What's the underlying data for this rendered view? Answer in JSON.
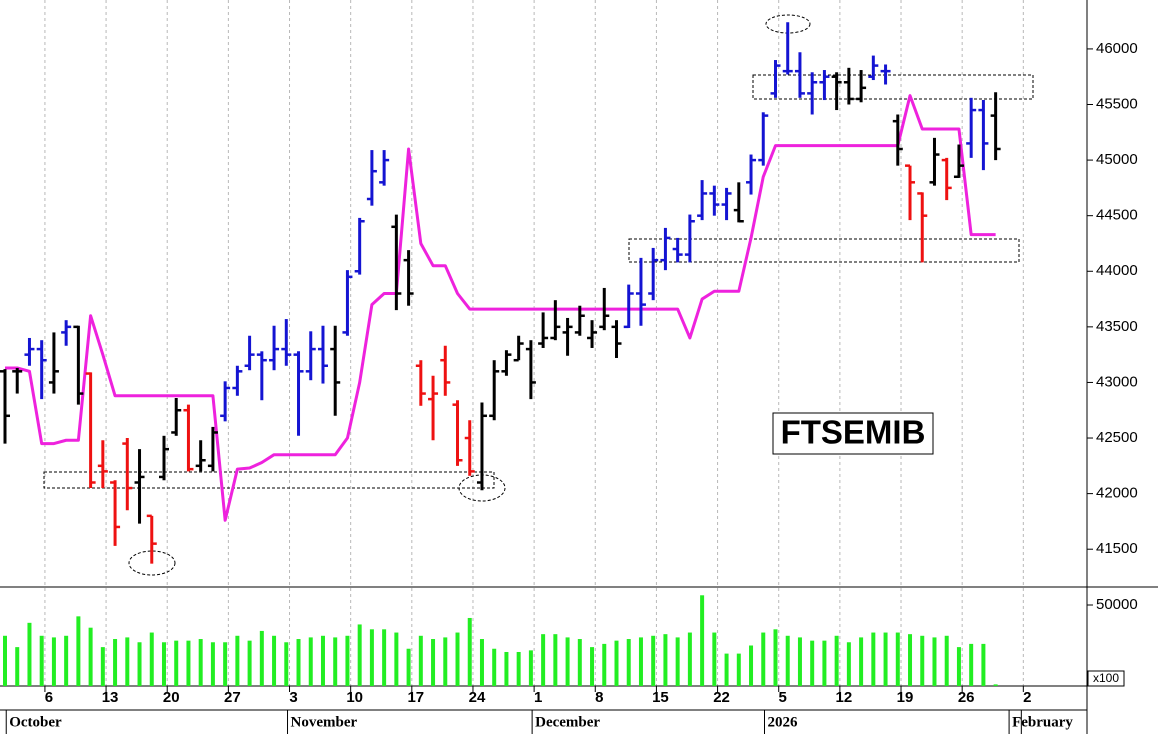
{
  "chart_data": {
    "type": "ohlc",
    "title": "FTSEMIB",
    "categories": [
      null,
      null,
      null,
      null,
      "6",
      null,
      null,
      null,
      null,
      "13",
      null,
      null,
      null,
      null,
      "20",
      null,
      null,
      null,
      null,
      "27",
      null,
      null,
      null,
      null,
      "3",
      null,
      null,
      null,
      null,
      "10",
      null,
      null,
      null,
      null,
      "17",
      null,
      null,
      null,
      null,
      "24",
      null,
      null,
      null,
      null,
      "1",
      null,
      null,
      null,
      null,
      "8",
      null,
      null,
      null,
      null,
      "15",
      null,
      null,
      null,
      null,
      "22",
      null,
      null,
      null,
      null,
      "5",
      null,
      null,
      null,
      null,
      "12",
      null,
      null,
      null,
      null,
      "19",
      null,
      null,
      null,
      null,
      "26",
      null,
      null,
      null,
      null,
      "2"
    ],
    "months": [
      null,
      "October",
      null,
      null,
      null,
      null,
      null,
      null,
      null,
      null,
      null,
      null,
      null,
      null,
      null,
      null,
      null,
      null,
      null,
      null,
      null,
      null,
      null,
      null,
      "November",
      null,
      null,
      null,
      null,
      null,
      null,
      null,
      null,
      null,
      null,
      null,
      null,
      null,
      null,
      null,
      null,
      null,
      null,
      null,
      "December",
      null,
      null,
      null,
      null,
      null,
      null,
      null,
      null,
      null,
      null,
      null,
      null,
      null,
      null,
      null,
      null,
      null,
      null,
      "2026",
      null,
      null,
      null,
      null,
      null,
      null,
      null,
      null,
      null,
      null,
      null,
      null,
      null,
      null,
      null,
      null,
      null,
      null,
      null,
      "February"
    ],
    "ohlc": [
      [
        43100,
        43120,
        42450,
        42700
      ],
      [
        43100,
        43130,
        42900,
        43100
      ],
      [
        43250,
        43400,
        43150,
        43300
      ],
      [
        43300,
        43380,
        42850,
        43200
      ],
      [
        43000,
        43450,
        42900,
        43100
      ],
      [
        43450,
        43560,
        43330,
        43500
      ],
      [
        43500,
        43510,
        42800,
        42900
      ],
      [
        43080,
        43090,
        42050,
        42100
      ],
      [
        42250,
        42480,
        42050,
        42200
      ],
      [
        42100,
        42120,
        41530,
        41700
      ],
      [
        42450,
        42500,
        41850,
        42050
      ],
      [
        42100,
        42400,
        41730,
        42150
      ],
      [
        41800,
        41800,
        41370,
        41550
      ],
      [
        42150,
        42520,
        42120,
        42400
      ],
      [
        42550,
        42860,
        42520,
        42750
      ],
      [
        42750,
        42800,
        42200,
        42220
      ],
      [
        42250,
        42480,
        42200,
        42300
      ],
      [
        42250,
        42600,
        42200,
        42550
      ],
      [
        42700,
        43010,
        42650,
        42950
      ],
      [
        42950,
        43150,
        42880,
        43100
      ],
      [
        43150,
        43420,
        43110,
        43250
      ],
      [
        43250,
        43280,
        42840,
        43200
      ],
      [
        43200,
        43510,
        43110,
        43300
      ],
      [
        43300,
        43570,
        43150,
        43250
      ],
      [
        43250,
        43280,
        42520,
        43100
      ],
      [
        43100,
        43460,
        43020,
        43300
      ],
      [
        43300,
        43510,
        42990,
        43150
      ],
      [
        43300,
        43510,
        42700,
        43000
      ],
      [
        43450,
        44010,
        43420,
        43950
      ],
      [
        44000,
        44480,
        43970,
        44450
      ],
      [
        44650,
        45090,
        44590,
        44900
      ],
      [
        44800,
        45090,
        44770,
        45000
      ],
      [
        44400,
        44510,
        43650,
        43800
      ],
      [
        44100,
        44190,
        43690,
        43800
      ],
      [
        43150,
        43200,
        42790,
        42900
      ],
      [
        42850,
        43060,
        42480,
        42900
      ],
      [
        43200,
        43330,
        42880,
        43000
      ],
      [
        42800,
        42840,
        42250,
        42300
      ],
      [
        42500,
        42660,
        42160,
        42200
      ],
      [
        42100,
        42820,
        42030,
        42700
      ],
      [
        42700,
        43200,
        42660,
        43100
      ],
      [
        43100,
        43290,
        43060,
        43250
      ],
      [
        43200,
        43420,
        43200,
        43350
      ],
      [
        43300,
        43380,
        42850,
        43000
      ],
      [
        43350,
        43630,
        43310,
        43400
      ],
      [
        43400,
        43740,
        43380,
        43500
      ],
      [
        43450,
        43580,
        43240,
        43500
      ],
      [
        43450,
        43690,
        43420,
        43600
      ],
      [
        43400,
        43560,
        43310,
        43450
      ],
      [
        43500,
        43850,
        43470,
        43600
      ],
      [
        43500,
        43560,
        43220,
        43350
      ],
      [
        43500,
        43880,
        43490,
        43800
      ],
      [
        43800,
        44120,
        43510,
        43700
      ],
      [
        43800,
        44210,
        43740,
        44100
      ],
      [
        44100,
        44390,
        44010,
        44300
      ],
      [
        44200,
        44300,
        44080,
        44150
      ],
      [
        44150,
        44510,
        44080,
        44450
      ],
      [
        44500,
        44820,
        44460,
        44700
      ],
      [
        44700,
        44770,
        44500,
        44600
      ],
      [
        44600,
        44750,
        44460,
        44700
      ],
      [
        44550,
        44800,
        44440,
        44450
      ],
      [
        44800,
        45050,
        44690,
        45000
      ],
      [
        45000,
        45430,
        44950,
        45400
      ],
      [
        45600,
        45900,
        45560,
        45850
      ],
      [
        45800,
        46240,
        45770,
        45800
      ],
      [
        45800,
        45970,
        45560,
        45600
      ],
      [
        45600,
        45790,
        45410,
        45700
      ],
      [
        45700,
        45810,
        45540,
        45750
      ],
      [
        45750,
        45790,
        45450,
        45700
      ],
      [
        45700,
        45830,
        45500,
        45550
      ],
      [
        45550,
        45810,
        45520,
        45650
      ],
      [
        45750,
        45940,
        45720,
        45850
      ],
      [
        45800,
        45860,
        45680,
        45800
      ],
      [
        45350,
        45410,
        44950,
        45100
      ],
      [
        44950,
        44950,
        44460,
        44800
      ],
      [
        44700,
        44710,
        44080,
        44500
      ],
      [
        44800,
        45200,
        44770,
        45050
      ],
      [
        45000,
        45020,
        44640,
        44750
      ],
      [
        44850,
        45140,
        44840,
        44950
      ],
      [
        45150,
        45560,
        45020,
        45450
      ],
      [
        45450,
        45540,
        44910,
        45150
      ],
      [
        45400,
        45610,
        45000,
        45100
      ],
      null,
      null,
      null
    ],
    "bar_colors": [
      "#000000",
      "#000000",
      "#1414d2",
      "#1414d2",
      "#000000",
      "#1414d2",
      "#000000",
      "#ee1111",
      "#ee1111",
      "#ee1111",
      "#ee1111",
      "#000000",
      "#ee1111",
      "#000000",
      "#000000",
      "#ee1111",
      "#000000",
      "#000000",
      "#1414d2",
      "#1414d2",
      "#1414d2",
      "#1414d2",
      "#1414d2",
      "#1414d2",
      "#1414d2",
      "#1414d2",
      "#1414d2",
      "#000000",
      "#1414d2",
      "#1414d2",
      "#1414d2",
      "#1414d2",
      "#000000",
      "#000000",
      "#ee1111",
      "#ee1111",
      "#ee1111",
      "#ee1111",
      "#ee1111",
      "#000000",
      "#000000",
      "#000000",
      "#000000",
      "#000000",
      "#000000",
      "#000000",
      "#000000",
      "#000000",
      "#000000",
      "#000000",
      "#000000",
      "#1414d2",
      "#1414d2",
      "#1414d2",
      "#1414d2",
      "#1414d2",
      "#1414d2",
      "#1414d2",
      "#1414d2",
      "#1414d2",
      "#000000",
      "#1414d2",
      "#1414d2",
      "#1414d2",
      "#1414d2",
      "#1414d2",
      "#1414d2",
      "#1414d2",
      "#000000",
      "#000000",
      "#000000",
      "#1414d2",
      "#1414d2",
      "#000000",
      "#ee1111",
      "#ee1111",
      "#000000",
      "#ee1111",
      "#000000",
      "#1414d2",
      "#1414d2",
      "#000000",
      null,
      null,
      null
    ],
    "line": {
      "color": "#ee22dd",
      "values": [
        43130,
        43130,
        43100,
        42450,
        42450,
        42480,
        42480,
        43600,
        43250,
        42880,
        42880,
        42880,
        42880,
        42880,
        42880,
        42880,
        42880,
        42880,
        41760,
        42220,
        42230,
        42280,
        42350,
        42350,
        42350,
        42350,
        42350,
        42350,
        42500,
        43000,
        43700,
        43800,
        43800,
        45100,
        44250,
        44050,
        44050,
        43800,
        43660,
        43660,
        43660,
        43660,
        43660,
        43660,
        43660,
        43660,
        43660,
        43660,
        43660,
        43660,
        43660,
        43660,
        43660,
        43660,
        43660,
        43660,
        43400,
        43750,
        43820,
        43820,
        43820,
        44300,
        44850,
        45130,
        45130,
        45130,
        45130,
        45130,
        45130,
        45130,
        45130,
        45130,
        45130,
        45130,
        45580,
        45280,
        45280,
        45280,
        45280,
        44330,
        44330,
        44330,
        null,
        null,
        null
      ]
    },
    "ylim": [
      41160,
      46440
    ],
    "yticks": [
      41500,
      42000,
      42500,
      43000,
      43500,
      44000,
      44500,
      45000,
      45500,
      46000
    ],
    "grid": true,
    "volume": {
      "color": "#22ee22",
      "unit": "x100",
      "ylim": [
        0,
        60500
      ],
      "yticks": [
        50000
      ],
      "values": [
        31000,
        24000,
        39000,
        31000,
        30000,
        31000,
        43000,
        36000,
        24000,
        29000,
        30000,
        27000,
        33000,
        27000,
        28000,
        28000,
        29000,
        27000,
        27000,
        31000,
        28000,
        34000,
        31000,
        27000,
        29000,
        30000,
        31000,
        30000,
        31000,
        38000,
        35000,
        35000,
        33000,
        23000,
        31000,
        29000,
        30000,
        33000,
        42000,
        29000,
        23000,
        21000,
        21000,
        22000,
        32000,
        32000,
        30000,
        29000,
        24000,
        26000,
        28000,
        29000,
        30000,
        31000,
        32000,
        30000,
        33000,
        56000,
        33000,
        20000,
        20000,
        25000,
        33000,
        35000,
        31000,
        30000,
        28000,
        28000,
        31000,
        27000,
        30000,
        33000,
        33000,
        33000,
        32000,
        31000,
        30000,
        31000,
        24000,
        26000,
        26000,
        1000,
        null,
        null,
        null
      ]
    }
  }
}
